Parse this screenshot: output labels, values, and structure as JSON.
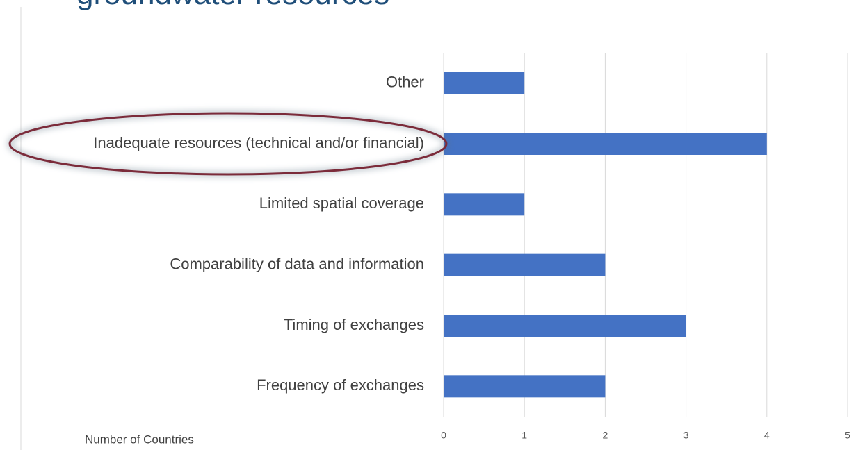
{
  "chart_data": {
    "type": "bar",
    "orientation": "horizontal",
    "title": "groundwater resources",
    "x_axis_label": "Number of Countries",
    "categories": [
      "Other",
      "Inadequate resources (technical and/or financial)",
      "Limited spatial coverage",
      "Comparability of data and information",
      "Timing of exchanges",
      "Frequency of exchanges"
    ],
    "values": [
      1,
      4,
      1,
      2,
      3,
      2
    ],
    "color": "#4472c4",
    "xlim": [
      0,
      5
    ],
    "xticks": [
      0,
      1,
      2,
      3,
      4,
      5
    ],
    "grid": true
  }
}
